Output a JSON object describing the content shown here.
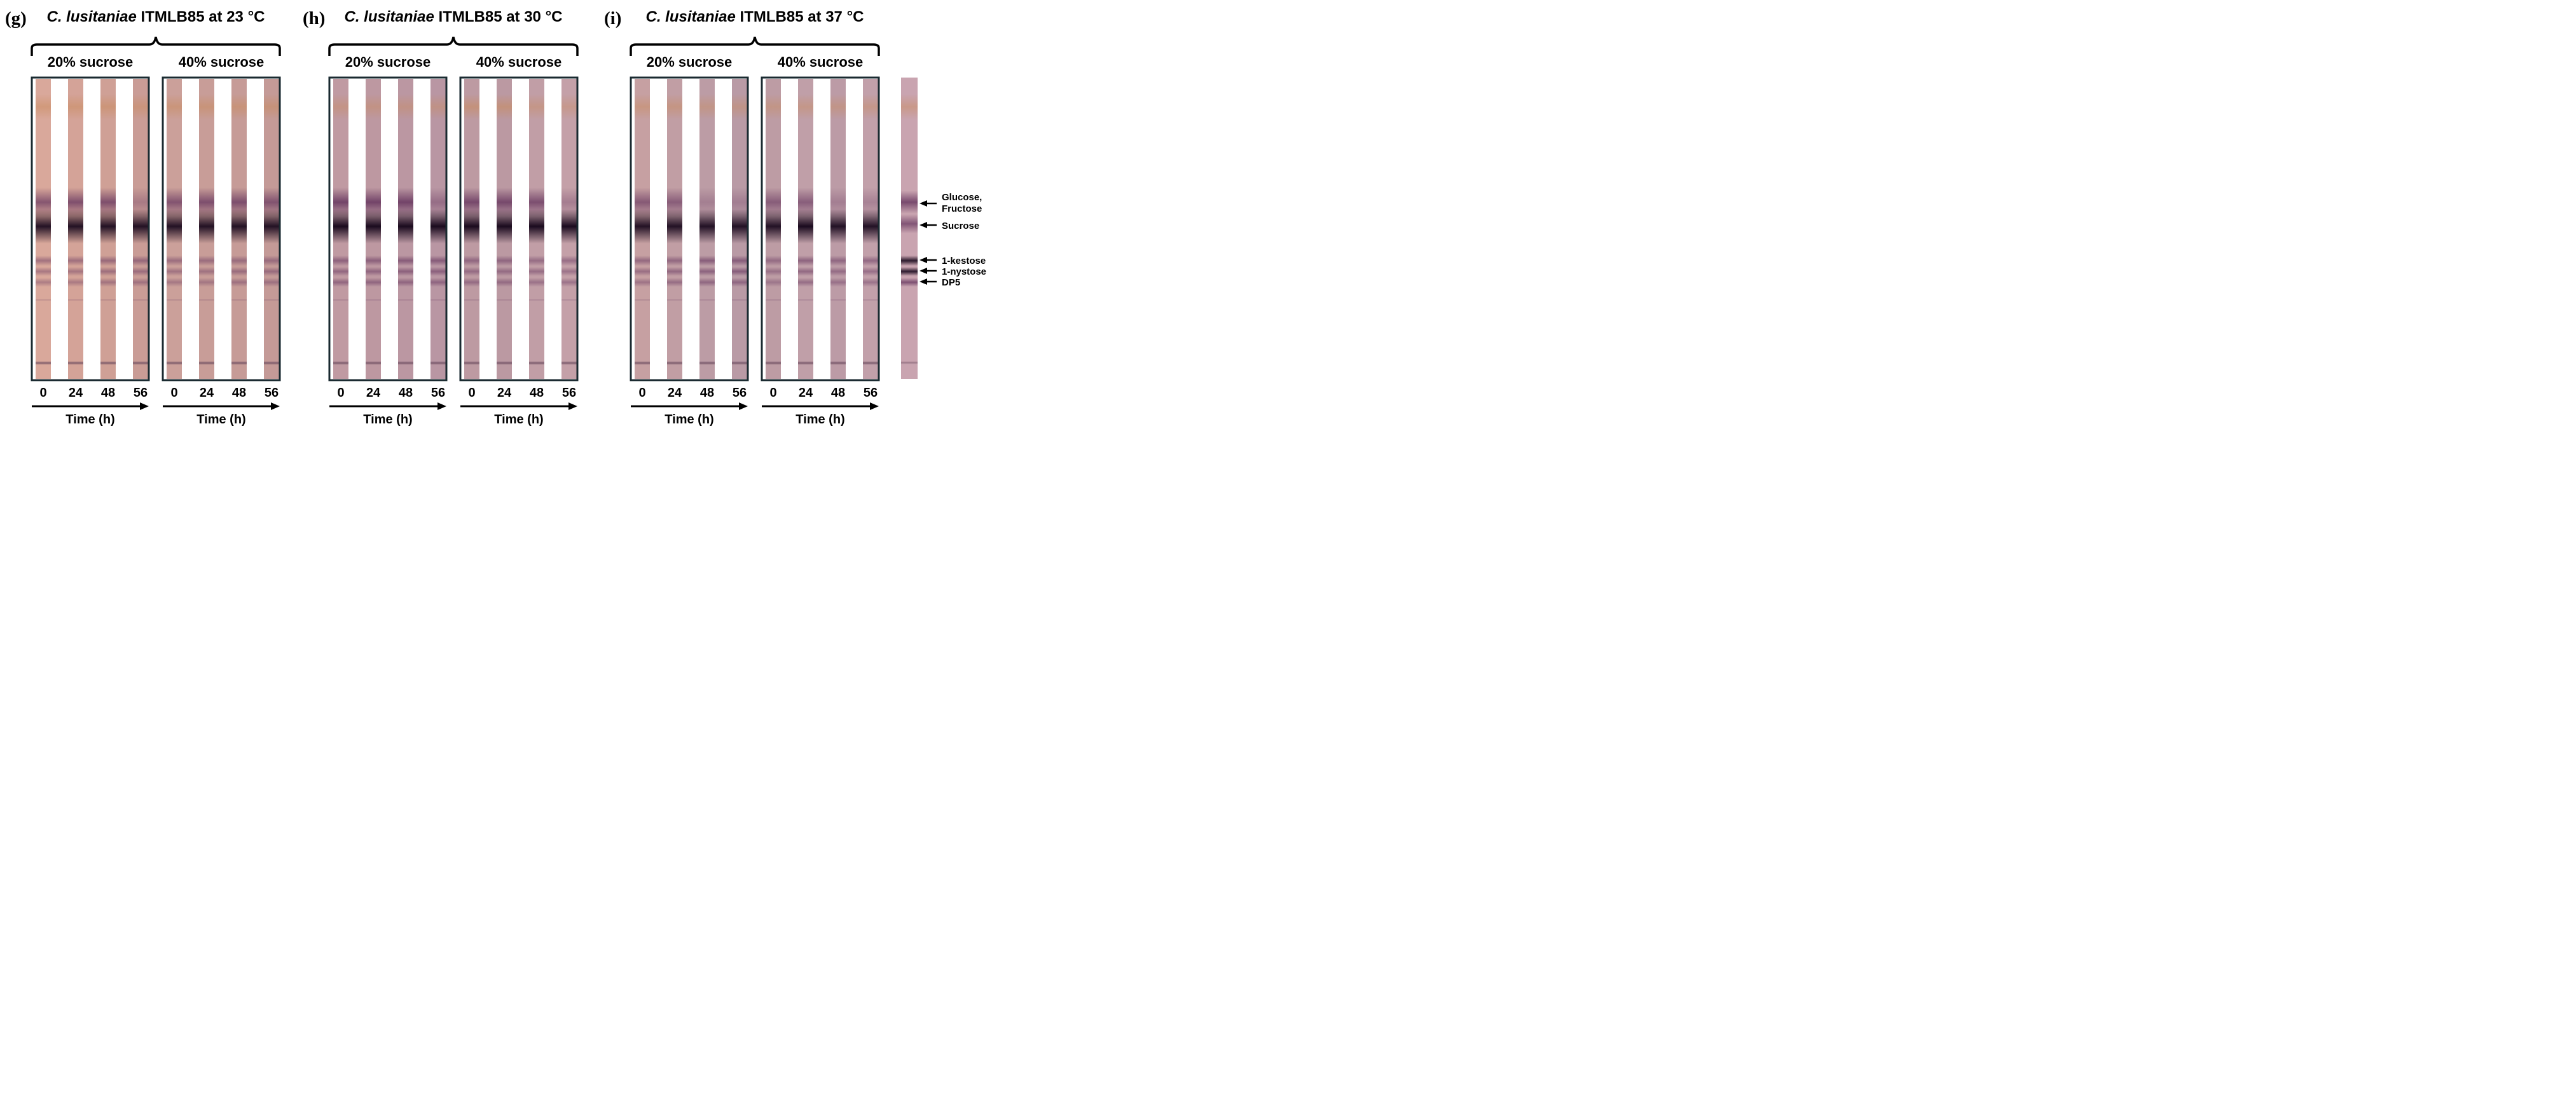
{
  "figure": {
    "panels": [
      {
        "letter": "(g)",
        "title_species": "C. lusitaniae",
        "title_rest": " ITMLB85 at 23 °C",
        "groups": [
          {
            "label": "20% sucrose",
            "time_points": [
              "0",
              "24",
              "48",
              "56"
            ],
            "axis_label": "Time (h)",
            "lanes": [
              {
                "top_haze": 0.55,
                "gf": 0.75,
                "suc": 0.95,
                "kest": 0.5,
                "nys": 0.45,
                "dp5": 0.4,
                "tint": "#d9a89b"
              },
              {
                "top_haze": 0.55,
                "gf": 0.8,
                "suc": 0.95,
                "kest": 0.5,
                "nys": 0.45,
                "dp5": 0.4,
                "tint": "#d4a398"
              },
              {
                "top_haze": 0.55,
                "gf": 0.8,
                "suc": 0.95,
                "kest": 0.55,
                "nys": 0.5,
                "dp5": 0.45,
                "tint": "#cfa096"
              },
              {
                "top_haze": 0.5,
                "gf": 0.35,
                "suc": 0.95,
                "kest": 0.55,
                "nys": 0.5,
                "dp5": 0.45,
                "tint": "#c99c96"
              }
            ]
          },
          {
            "label": "40% sucrose",
            "time_points": [
              "0",
              "24",
              "48",
              "56"
            ],
            "axis_label": "Time (h)",
            "lanes": [
              {
                "top_haze": 0.55,
                "gf": 0.75,
                "suc": 0.95,
                "kest": 0.5,
                "nys": 0.45,
                "dp5": 0.4,
                "tint": "#cba09a"
              },
              {
                "top_haze": 0.55,
                "gf": 0.8,
                "suc": 0.95,
                "kest": 0.5,
                "nys": 0.45,
                "dp5": 0.4,
                "tint": "#c89d98"
              },
              {
                "top_haze": 0.55,
                "gf": 0.8,
                "suc": 0.95,
                "kest": 0.5,
                "nys": 0.5,
                "dp5": 0.45,
                "tint": "#c69b97"
              },
              {
                "top_haze": 0.55,
                "gf": 0.75,
                "suc": 0.95,
                "kest": 0.5,
                "nys": 0.5,
                "dp5": 0.45,
                "tint": "#c49a97"
              }
            ]
          }
        ]
      },
      {
        "letter": "(h)",
        "title_species": "C. lusitaniae",
        "title_rest": " ITMLB85 at 30 °C",
        "groups": [
          {
            "label": "20% sucrose",
            "time_points": [
              "0",
              "24",
              "48",
              "56"
            ],
            "axis_label": "Time (h)",
            "lanes": [
              {
                "top_haze": 0.45,
                "gf": 0.9,
                "suc": 1.0,
                "kest": 0.6,
                "nys": 0.55,
                "dp5": 0.55,
                "tint": "#c09aa2"
              },
              {
                "top_haze": 0.45,
                "gf": 0.9,
                "suc": 1.0,
                "kest": 0.6,
                "nys": 0.55,
                "dp5": 0.55,
                "tint": "#bd98a1"
              },
              {
                "top_haze": 0.45,
                "gf": 0.9,
                "suc": 1.0,
                "kest": 0.65,
                "nys": 0.6,
                "dp5": 0.55,
                "tint": "#bb97a2"
              },
              {
                "top_haze": 0.45,
                "gf": 0.45,
                "suc": 1.0,
                "kest": 0.65,
                "nys": 0.6,
                "dp5": 0.55,
                "tint": "#b996a3"
              }
            ]
          },
          {
            "label": "40% sucrose",
            "time_points": [
              "0",
              "24",
              "48",
              "56"
            ],
            "axis_label": "Time (h)",
            "lanes": [
              {
                "top_haze": 0.6,
                "gf": 0.85,
                "suc": 1.0,
                "kest": 0.55,
                "nys": 0.5,
                "dp5": 0.5,
                "tint": "#bd9aa2"
              },
              {
                "top_haze": 0.6,
                "gf": 0.85,
                "suc": 1.0,
                "kest": 0.55,
                "nys": 0.5,
                "dp5": 0.5,
                "tint": "#bb99a2"
              },
              {
                "top_haze": 0.45,
                "gf": 0.8,
                "suc": 1.0,
                "kest": 0.5,
                "nys": 0.5,
                "dp5": 0.45,
                "tint": "#c19ea6"
              },
              {
                "top_haze": 0.4,
                "gf": 0.35,
                "suc": 1.0,
                "kest": 0.5,
                "nys": 0.45,
                "dp5": 0.45,
                "tint": "#c4a0a8"
              }
            ]
          }
        ]
      },
      {
        "letter": "(i)",
        "title_species": "C. lusitaniae",
        "title_rest": " ITMLB85 at 37 °C",
        "groups": [
          {
            "label": "20% sucrose",
            "time_points": [
              "0",
              "24",
              "48",
              "56"
            ],
            "axis_label": "Time (h)",
            "lanes": [
              {
                "top_haze": 0.5,
                "gf": 0.7,
                "suc": 0.95,
                "kest": 0.55,
                "nys": 0.5,
                "dp5": 0.45,
                "tint": "#c6a0a2"
              },
              {
                "top_haze": 0.5,
                "gf": 0.65,
                "suc": 0.95,
                "kest": 0.55,
                "nys": 0.55,
                "dp5": 0.5,
                "tint": "#c19ea4"
              },
              {
                "top_haze": 0.45,
                "gf": 0.3,
                "suc": 0.95,
                "kest": 0.65,
                "nys": 0.6,
                "dp5": 0.55,
                "tint": "#bc9ca5"
              },
              {
                "top_haze": 0.45,
                "gf": 0.3,
                "suc": 0.95,
                "kest": 0.65,
                "nys": 0.65,
                "dp5": 0.55,
                "tint": "#b99aa5"
              }
            ]
          },
          {
            "label": "40% sucrose",
            "time_points": [
              "0",
              "24",
              "48",
              "56"
            ],
            "axis_label": "Time (h)",
            "lanes": [
              {
                "top_haze": 0.45,
                "gf": 0.65,
                "suc": 0.95,
                "kest": 0.5,
                "nys": 0.45,
                "dp5": 0.4,
                "tint": "#bd9ca4"
              },
              {
                "top_haze": 0.45,
                "gf": 0.65,
                "suc": 1.0,
                "kest": 0.6,
                "nys": 0.55,
                "dp5": 0.5,
                "tint": "#c09fa8"
              },
              {
                "top_haze": 0.45,
                "gf": 0.3,
                "suc": 0.95,
                "kest": 0.55,
                "nys": 0.5,
                "dp5": 0.45,
                "tint": "#bc9ba6"
              },
              {
                "top_haze": 0.45,
                "gf": 0.3,
                "suc": 0.95,
                "kest": 0.55,
                "nys": 0.5,
                "dp5": 0.45,
                "tint": "#c2a0aa"
              }
            ]
          }
        ]
      }
    ],
    "standard_lane": {
      "tint": "#c9a4b0",
      "bands": {
        "top_haze": 0.5,
        "gf": 0.85,
        "suc": 0.75,
        "kest": 0.9,
        "nys": 0.9,
        "dp5": 0.8
      },
      "labels": [
        {
          "key": "gf",
          "lines": [
            "Glucose,",
            "Fructose"
          ]
        },
        {
          "key": "suc",
          "lines": [
            "Sucrose"
          ]
        },
        {
          "key": "kest",
          "lines": [
            "1-kestose"
          ]
        },
        {
          "key": "nys",
          "lines": [
            "1-nystose"
          ]
        },
        {
          "key": "dp5",
          "lines": [
            "DP5"
          ]
        }
      ]
    },
    "colors": {
      "text": "#000000",
      "frame": "#1a2a30",
      "band_dark": "#1a0a1e",
      "band_purple": "#6a3a62",
      "top_band": "#c98a5a",
      "bottom_line": "#6a4a5e"
    }
  }
}
